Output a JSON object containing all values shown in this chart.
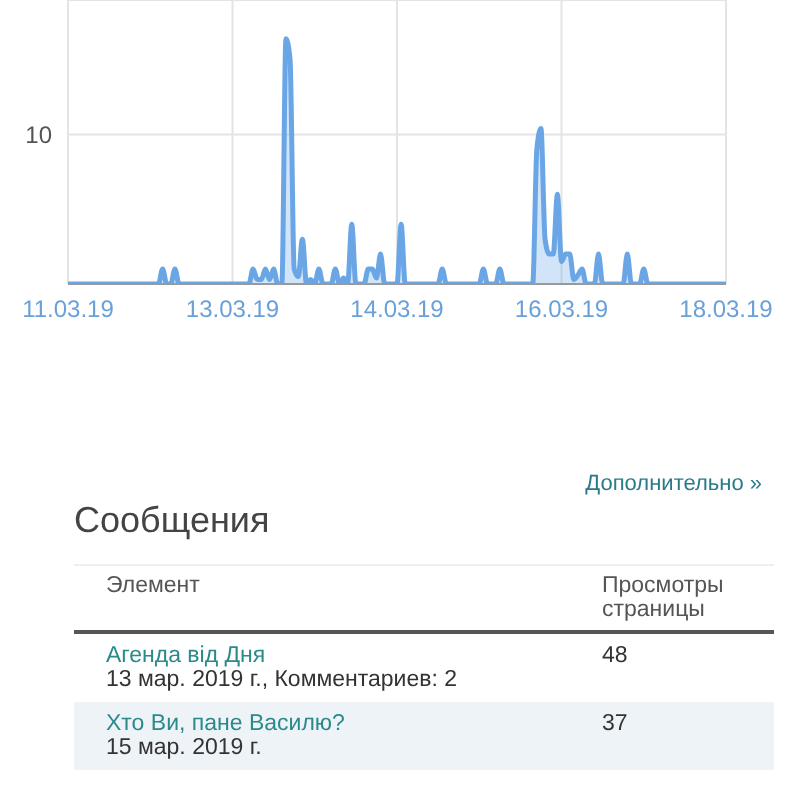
{
  "chart_data": {
    "type": "area",
    "categories": [
      "11.03.19",
      null,
      null,
      null,
      null,
      null,
      null,
      null,
      null,
      null,
      null,
      null,
      null,
      null,
      null,
      null,
      null,
      null,
      null,
      null,
      null,
      null,
      null,
      null,
      null,
      null,
      null,
      null,
      null,
      null,
      null,
      null,
      null,
      null,
      null,
      null,
      null,
      null,
      null,
      null,
      "13.03.19",
      null,
      null,
      null,
      null,
      null,
      null,
      null,
      null,
      null,
      null,
      null,
      null,
      null,
      null,
      null,
      null,
      null,
      null,
      null,
      null,
      null,
      null,
      null,
      null,
      null,
      null,
      null,
      null,
      null,
      null,
      null,
      null,
      null,
      null,
      null,
      null,
      null,
      null,
      null,
      "14.03.19",
      null,
      null,
      null,
      null,
      null,
      null,
      null,
      null,
      null,
      null,
      null,
      null,
      null,
      null,
      null,
      null,
      null,
      null,
      null,
      null,
      null,
      null,
      null,
      null,
      null,
      null,
      null,
      null,
      null,
      null,
      null,
      null,
      null,
      null,
      null,
      null,
      null,
      null,
      null,
      "16.03.19",
      null,
      null,
      null,
      null,
      null,
      null,
      null,
      null,
      null,
      null,
      null,
      null,
      null,
      null,
      null,
      null,
      null,
      null,
      null,
      null,
      null,
      null,
      null,
      null,
      null,
      null,
      null,
      null,
      null,
      null,
      null,
      null,
      null,
      null,
      null,
      null,
      null,
      null,
      null,
      "18.03.19"
    ],
    "series": [
      {
        "color": "#6aa6e6",
        "values": [
          0,
          0,
          0,
          0,
          0,
          0,
          0,
          0,
          0,
          0,
          0,
          0,
          0,
          0,
          0,
          0,
          0,
          0,
          0,
          0,
          0,
          0,
          0,
          1,
          0,
          0,
          1,
          0,
          0,
          0,
          0,
          0,
          0,
          0,
          0,
          0,
          0,
          0,
          0,
          0,
          0,
          0,
          0,
          0,
          0,
          1,
          0.3,
          0.3,
          1,
          0.3,
          1,
          0,
          0,
          16.4,
          15,
          1,
          0.5,
          3,
          0,
          0.3,
          0,
          1,
          0,
          0,
          0,
          1,
          0,
          0.4,
          0,
          4,
          0,
          0,
          0,
          1,
          1,
          0.4,
          2,
          0,
          0,
          0,
          0,
          4,
          0,
          0,
          0,
          0,
          0,
          0,
          0,
          0,
          0,
          1,
          0,
          0,
          0,
          0,
          0,
          0,
          0,
          0,
          0,
          1,
          0,
          0,
          0,
          1,
          0,
          0,
          0,
          0,
          0,
          0,
          0,
          0,
          9,
          10.4,
          3,
          2,
          2,
          6,
          1.5,
          2,
          2,
          0.3,
          0.6,
          1,
          0,
          0,
          0,
          2,
          0,
          0,
          0,
          0,
          0,
          0,
          2,
          0,
          0,
          0,
          1,
          0,
          0,
          0,
          0,
          0,
          0,
          0,
          0,
          0,
          0,
          0,
          0,
          0,
          0,
          0,
          0,
          0,
          0,
          0,
          0
        ]
      }
    ],
    "ylim": [
      0,
      19
    ],
    "yticks": [
      {
        "value": 0,
        "label": null
      },
      10
    ],
    "grid": true,
    "annotations": [
      "Дополнительно »",
      "Сообщения",
      "Элемент",
      "Просмотры страницы",
      "Агенда від Дня",
      "13 мар. 2019 г., Комментариев: 2",
      "48",
      "Хто Ви, пане Василю?",
      "15 мар. 2019 г.",
      "37"
    ]
  }
}
